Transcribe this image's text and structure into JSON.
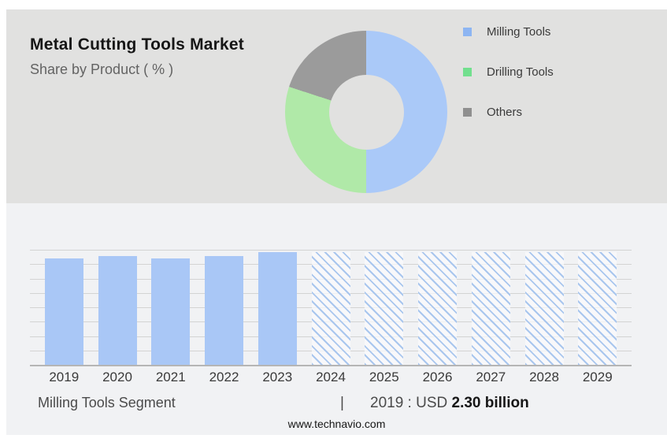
{
  "header": {
    "title": "Metal Cutting Tools Market",
    "subtitle": "Share by Product ( % )"
  },
  "colors": {
    "page_bg": "#ffffff",
    "top_bg": "#e1e1e0",
    "bottom_bg": "#f1f2f4",
    "title": "#161616",
    "subtitle": "#636363",
    "text_dark": "#3a3a3a",
    "text_mid": "#4b4b4b",
    "bar_fill": "#a9c7f6",
    "hatch_line": "#a9c6ee",
    "hatch_gap": "rgba(250,251,253,0.72)",
    "grid_line": "#d3d3d3",
    "axis_line": "#b5b5b5"
  },
  "chart_data": [
    {
      "type": "pie",
      "donut": true,
      "title": "Share by Product ( % )",
      "legend_position": "right",
      "slices": [
        {
          "label": "Milling Tools",
          "value": 50,
          "color": "#aac9f8",
          "legend_color": "#8db5f2"
        },
        {
          "label": "Drilling Tools",
          "value": 30,
          "color": "#b0e9a8",
          "legend_color": "#72df8e"
        },
        {
          "label": "Others",
          "value": 20,
          "color": "#9b9b9b",
          "legend_color": "#8f8f8f"
        }
      ]
    },
    {
      "type": "bar",
      "categories": [
        "2019",
        "2020",
        "2021",
        "2022",
        "2023",
        "2024",
        "2025",
        "2026",
        "2027",
        "2028",
        "2029"
      ],
      "values": [
        92.5,
        94.5,
        92.5,
        94.5,
        98,
        98,
        98,
        98,
        98,
        98,
        98
      ],
      "forecast_from_index": 5,
      "ylim": [
        0,
        100
      ],
      "gridline_count": 9,
      "xlabel": "",
      "ylabel": "",
      "legend_position": "none"
    }
  ],
  "footer": {
    "segment_label": "Milling Tools Segment",
    "separator": "|",
    "value_prefix": "2019 : USD ",
    "value_bold": "2.30 billion",
    "website": "www.technavio.com"
  }
}
